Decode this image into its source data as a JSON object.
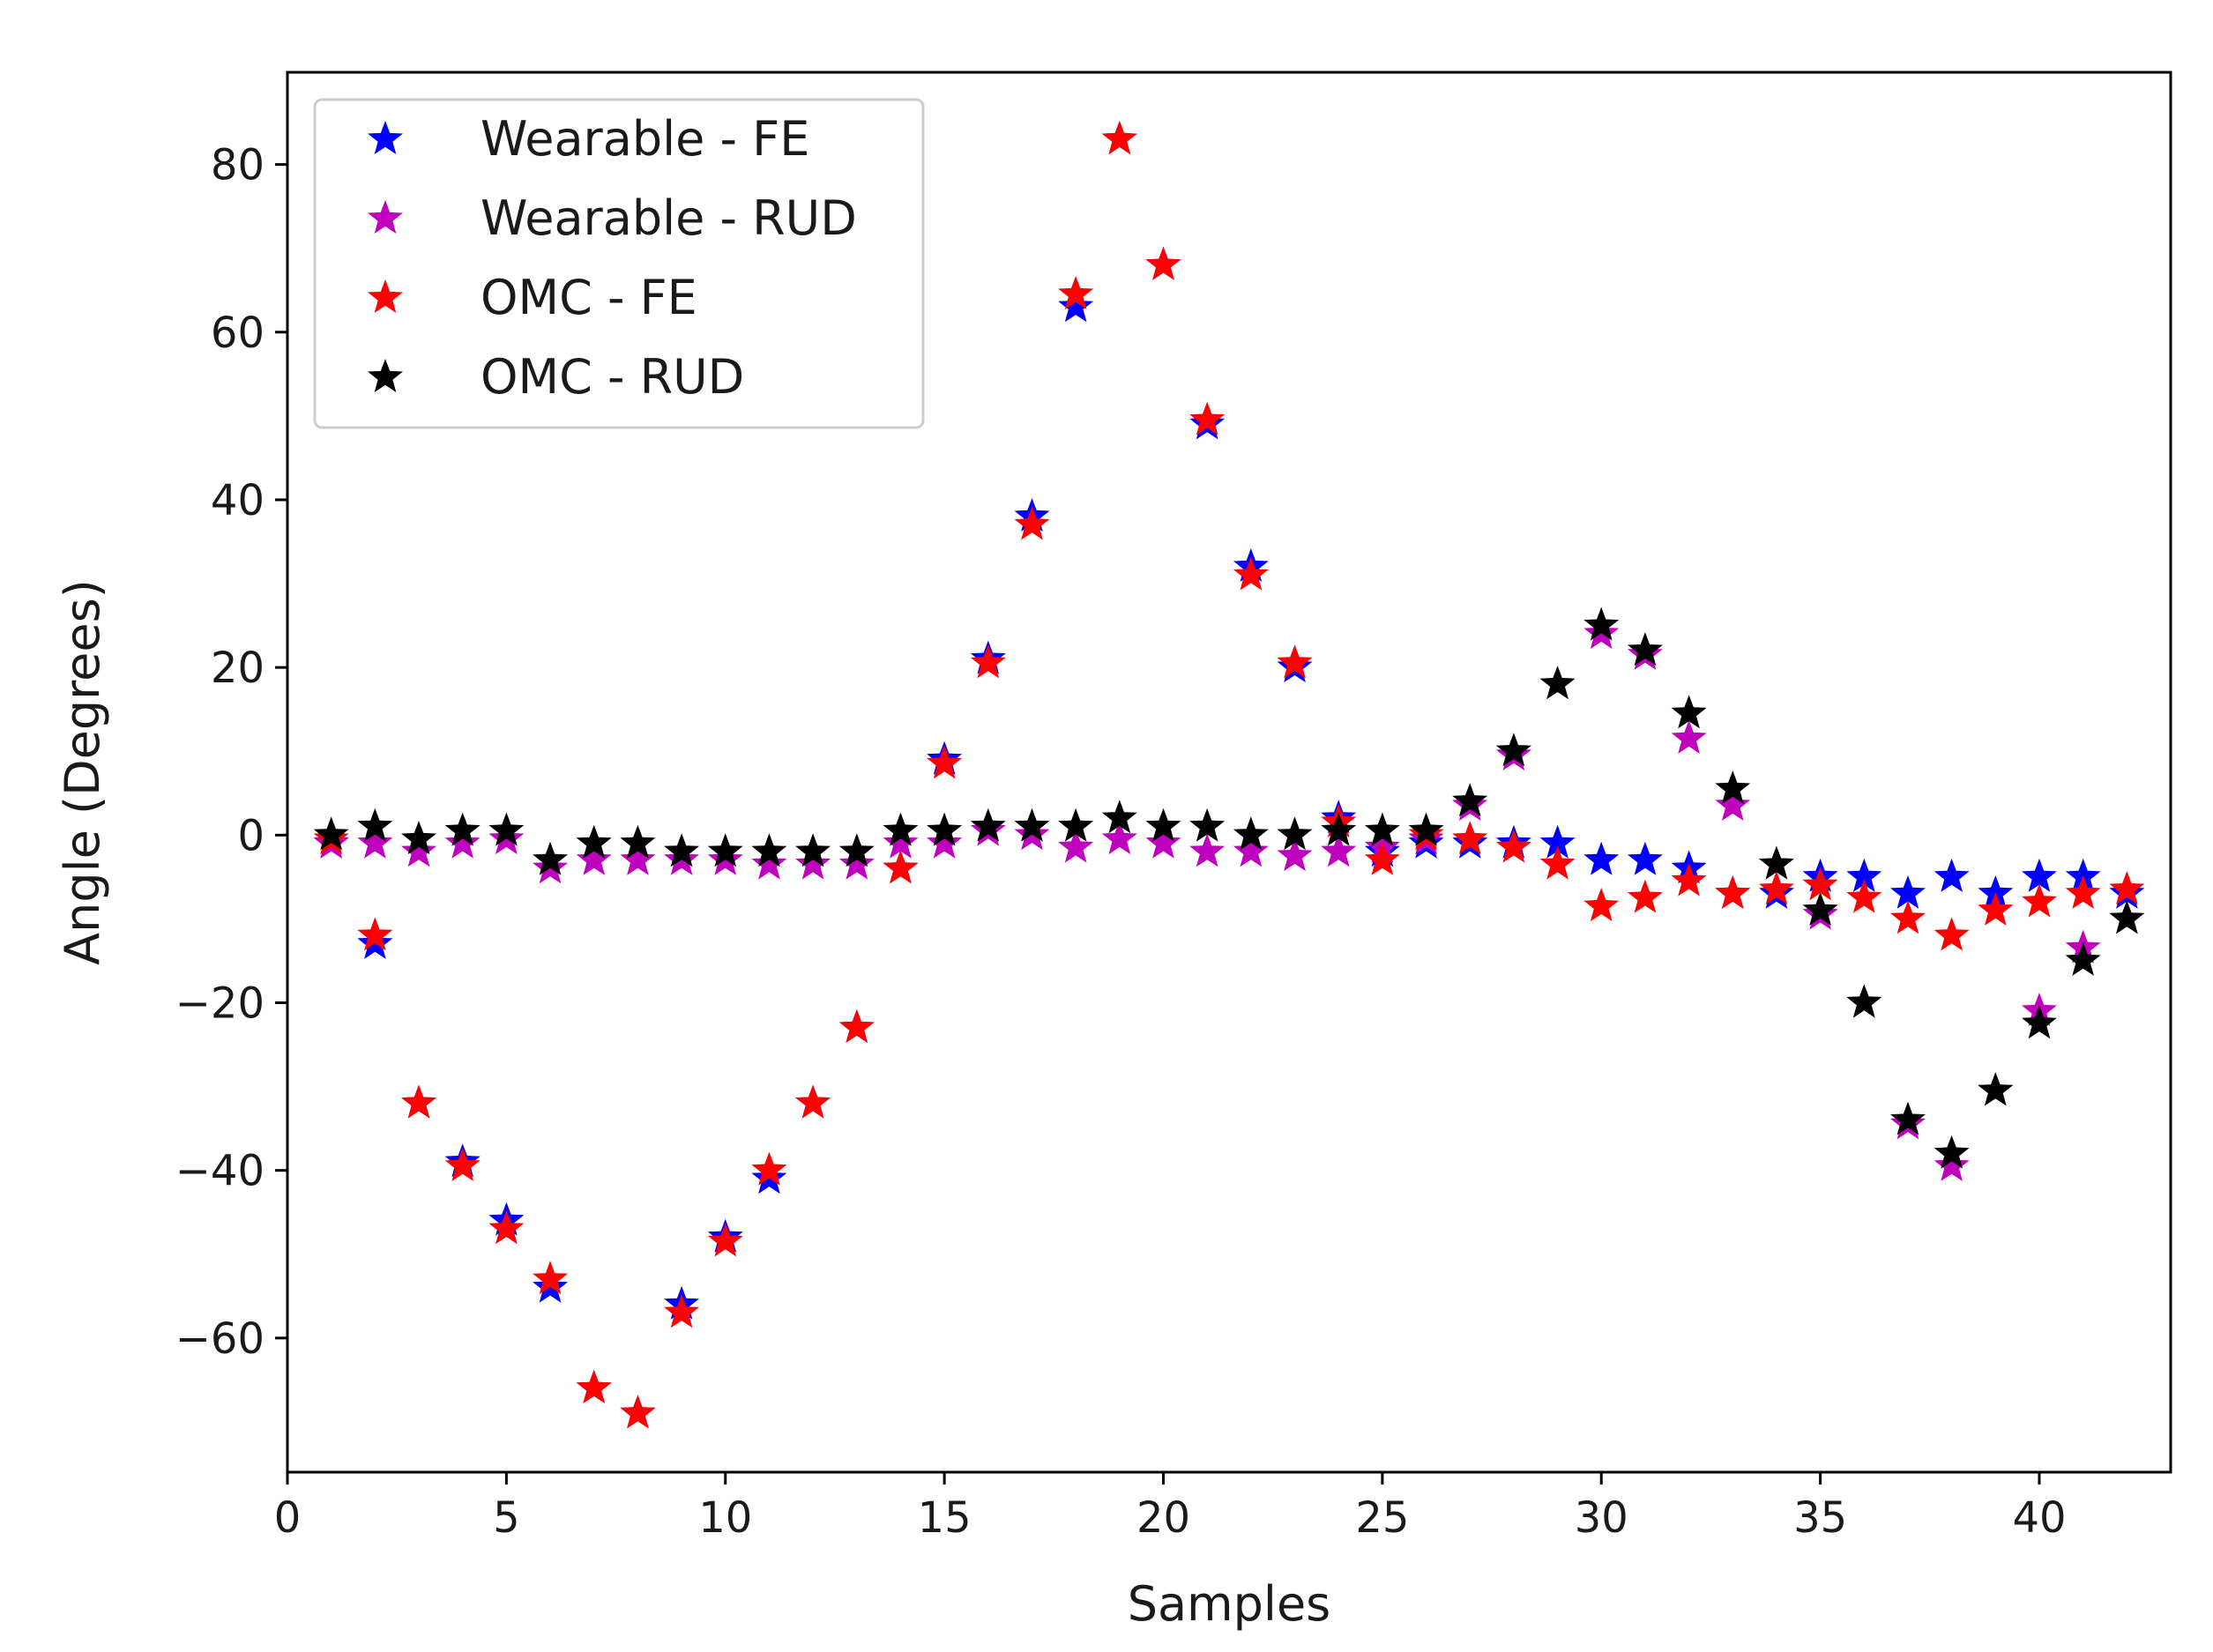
{
  "chart_data": {
    "type": "scatter",
    "title": "",
    "xlabel": "Samples",
    "ylabel": "Angle (Degrees)",
    "xlim": [
      0,
      43
    ],
    "ylim": [
      -76,
      91
    ],
    "xticks": [
      0,
      5,
      10,
      15,
      20,
      25,
      30,
      35,
      40
    ],
    "yticks": [
      -60,
      -40,
      -20,
      0,
      20,
      40,
      60,
      80
    ],
    "tick_labels_x": [
      "0",
      "5",
      "10",
      "15",
      "20",
      "25",
      "30",
      "35",
      "40"
    ],
    "tick_labels_y": [
      "−60",
      "−40",
      "−20",
      "0",
      "20",
      "40",
      "60",
      "80"
    ],
    "grid": false,
    "legend_position": "top-left",
    "x": [
      1,
      2,
      3,
      4,
      5,
      6,
      7,
      8,
      9,
      10,
      11,
      12,
      13,
      14,
      15,
      16,
      17,
      18,
      19,
      20,
      21,
      22,
      23,
      24,
      25,
      26,
      27,
      28,
      29,
      30,
      31,
      32,
      33,
      34,
      35,
      36,
      37,
      38,
      39,
      40,
      41,
      42
    ],
    "series": [
      {
        "name": "Wearable - FE",
        "color": "#0000ff",
        "marker": "star",
        "values": [
          -1,
          -13,
          -32,
          -39,
          -46,
          -54,
          -66,
          -69,
          -56,
          -48,
          -41,
          -32,
          -23,
          -4,
          9,
          21,
          38,
          63,
          83,
          68,
          49,
          32,
          20,
          2,
          -2,
          -1,
          -1,
          -1,
          -1,
          -3,
          -3,
          -4,
          -7,
          -7,
          -5,
          -5,
          -7,
          -5,
          -7,
          -5,
          -5,
          -7
        ]
      },
      {
        "name": "Wearable - RUD",
        "color": "#bf00bf",
        "marker": "star",
        "values": [
          -1,
          -1,
          -2,
          -1,
          -0.5,
          -4,
          -3,
          -3,
          -3,
          -3,
          -3.5,
          -3.5,
          -3.5,
          -1,
          -1,
          0.5,
          0,
          -1.5,
          -0.5,
          -1,
          -2,
          -2,
          -2.5,
          -2,
          -1.5,
          -0.5,
          3.5,
          9.5,
          18,
          24,
          21.5,
          11.5,
          3.5,
          -3.5,
          -9.5,
          -20,
          -34.5,
          -39.5,
          -30.5,
          -21,
          -13.5,
          -10
        ]
      },
      {
        "name": "OMC - FE",
        "color": "#ff0000",
        "marker": "star",
        "values": [
          -0.5,
          -12,
          -32,
          -39.5,
          -47,
          -53,
          -66,
          -69,
          -57,
          -48.5,
          -40,
          -32,
          -23,
          -4,
          8.5,
          20.5,
          37,
          64.5,
          83,
          68,
          49.5,
          31,
          20.5,
          1.5,
          -3,
          0,
          -0.5,
          -1.5,
          -3.5,
          -8.5,
          -7.5,
          -5.5,
          -7,
          -6.5,
          -6,
          -7.5,
          -10,
          -12,
          -9,
          -8,
          -7,
          -6.5
        ]
      },
      {
        "name": "OMC - RUD",
        "color": "#000000",
        "marker": "star",
        "values": [
          0,
          1,
          -0.5,
          0.5,
          0.5,
          -3,
          -1,
          -1,
          -2,
          -2,
          -2,
          -2,
          -2,
          0.5,
          0.5,
          1,
          1,
          1,
          2,
          1,
          1,
          0,
          0,
          0.5,
          0.5,
          0.5,
          4,
          10,
          18,
          25,
          22,
          14.5,
          5.5,
          -3.5,
          -9,
          -20,
          -34,
          -38,
          -30.5,
          -22.5,
          -15,
          -10
        ]
      }
    ]
  }
}
